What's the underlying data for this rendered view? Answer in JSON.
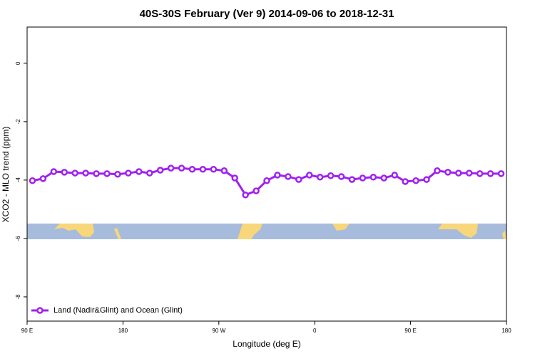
{
  "chart_data": {
    "type": "line",
    "title": "40S-30S February (Ver 9)   2014-09-06 to 2018-12-31",
    "xlabel": "Longitude (deg E)",
    "ylabel": "XCO2 - MLO trend (ppm)",
    "x": [
      95,
      105,
      115,
      125,
      135,
      145,
      155,
      165,
      175,
      185,
      195,
      205,
      215,
      225,
      235,
      245,
      255,
      265,
      275,
      285,
      295,
      305,
      315,
      325,
      335,
      345,
      355,
      365,
      375,
      385,
      395,
      405,
      415,
      425,
      435,
      445,
      455,
      465,
      475,
      485,
      495,
      505,
      515,
      525,
      535
    ],
    "series": [
      {
        "name": "Land (Nadir&Glint) and Ocean (Glint)",
        "color": "#a020f0",
        "values": [
          -4.02,
          -3.95,
          -3.71,
          -3.73,
          -3.76,
          -3.76,
          -3.78,
          -3.78,
          -3.8,
          -3.76,
          -3.71,
          -3.76,
          -3.66,
          -3.59,
          -3.59,
          -3.63,
          -3.63,
          -3.63,
          -3.68,
          -3.93,
          -4.51,
          -4.37,
          -4.02,
          -3.83,
          -3.88,
          -3.98,
          -3.83,
          -3.9,
          -3.85,
          -3.88,
          -3.98,
          -3.93,
          -3.9,
          -3.93,
          -3.83,
          -4.05,
          -4.02,
          -3.98,
          -3.68,
          -3.73,
          -3.76,
          -3.76,
          -3.78,
          -3.78,
          -3.78
        ]
      }
    ],
    "xlim": [
      90,
      540
    ],
    "ylim": [
      1.24,
      -8.83
    ],
    "xticks": [
      {
        "value": 90,
        "label": "90 E"
      },
      {
        "value": 180,
        "label": "180"
      },
      {
        "value": 270,
        "label": "90 W"
      },
      {
        "value": 360,
        "label": "0"
      },
      {
        "value": 450,
        "label": "90 E"
      },
      {
        "value": 540,
        "label": "180"
      }
    ],
    "yticks": [
      0,
      -2,
      -4,
      -6,
      -8
    ],
    "legend": "bottom-left"
  }
}
